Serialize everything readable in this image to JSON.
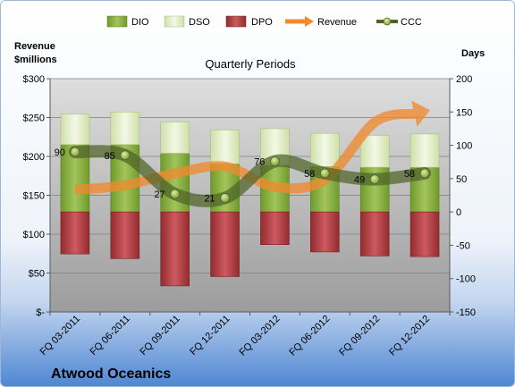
{
  "chart_data": {
    "type": "bar",
    "title": "Quarterly Periods",
    "company": "Atwood Oceanics",
    "left_axis": {
      "title_lines": [
        "Revenue",
        "$millions"
      ],
      "range": [
        0,
        300
      ],
      "ticks": [
        0,
        50,
        100,
        150,
        200,
        250,
        300
      ],
      "tick_labels": [
        "$-",
        "$50",
        "$100",
        "$150",
        "$200",
        "$250",
        "$300"
      ]
    },
    "right_axis": {
      "title": "Days",
      "range": [
        -150,
        200
      ],
      "ticks": [
        -150,
        -100,
        -50,
        0,
        50,
        100,
        150,
        200
      ],
      "tick_labels": [
        "-150",
        "-100",
        "-50",
        "0",
        "50",
        "100",
        "150",
        "200"
      ]
    },
    "categories": [
      "FQ 03-2011",
      "FQ 06-2011",
      "FQ 09-2011",
      "FQ 12-2011",
      "FQ 03-2012",
      "FQ 06-2012",
      "FQ 09-2012",
      "FQ 12-2012"
    ],
    "legend": [
      "DIO",
      "DSO",
      "DPO",
      "Revenue",
      "CCC"
    ],
    "series": [
      {
        "name": "DIO",
        "axis": "right",
        "values": [
          101,
          101,
          88,
          72,
          70,
          68,
          67,
          67
        ],
        "color": "#8fb33e"
      },
      {
        "name": "DSO",
        "axis": "right",
        "values": [
          46,
          49,
          47,
          51,
          55,
          50,
          48,
          50
        ],
        "color": "#e3efc6"
      },
      {
        "name": "DPO",
        "axis": "right",
        "values": [
          -63,
          -70,
          -111,
          -97,
          -49,
          -60,
          -66,
          -67
        ],
        "color": "#b83a3e"
      },
      {
        "name": "Revenue",
        "axis": "left",
        "values": [
          157,
          163,
          178,
          187,
          161,
          170,
          244,
          258
        ],
        "color": "#f08a2e"
      },
      {
        "name": "CCC",
        "axis": "right",
        "values": [
          90,
          85,
          27,
          21,
          76,
          58,
          49,
          58
        ],
        "labels": [
          "90",
          "85",
          "27",
          "21",
          "76",
          "58",
          "49",
          "58"
        ],
        "color": "#4f6228"
      }
    ],
    "grid": true
  }
}
